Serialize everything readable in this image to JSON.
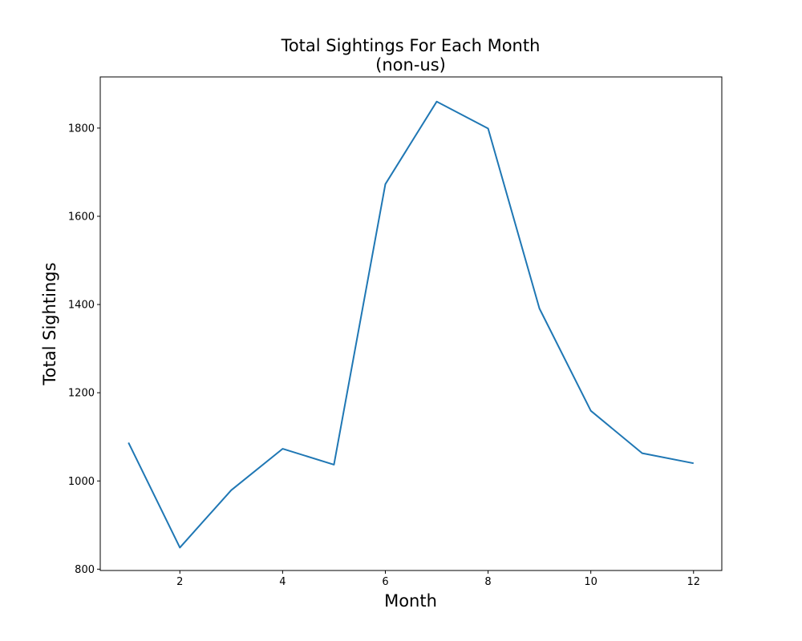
{
  "chart_data": {
    "type": "line",
    "title": "Total Sightings For Each Month",
    "subtitle": "(non-us)",
    "xlabel": "Month",
    "ylabel": "Total Sightings",
    "x": [
      1,
      2,
      3,
      4,
      5,
      6,
      7,
      8,
      9,
      10,
      11,
      12
    ],
    "series": [
      {
        "values": [
          1087,
          849,
          979,
          1073,
          1037,
          1673,
          1860,
          1799,
          1391,
          1159,
          1063,
          1040
        ],
        "color": "#1f77b4"
      }
    ],
    "xlim": [
      0.45,
      12.55
    ],
    "ylim": [
      797,
      1916
    ],
    "xticks": [
      2,
      4,
      6,
      8,
      10,
      12
    ],
    "yticks": [
      800,
      1000,
      1200,
      1400,
      1600,
      1800
    ],
    "grid": false,
    "legend": "none"
  }
}
